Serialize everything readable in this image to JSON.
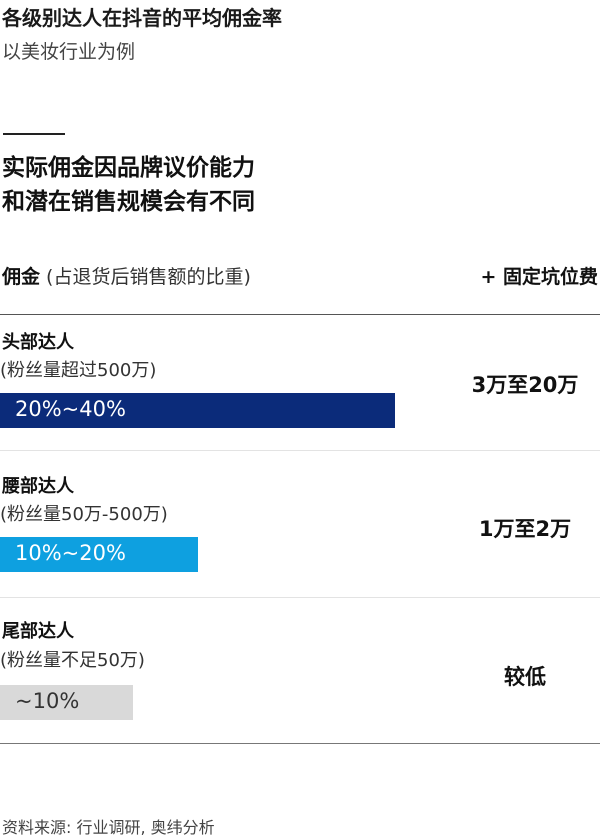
{
  "header": {
    "title": "各级别达人在抖音的平均佣金率",
    "subtitle": "以美妆行业为例",
    "headline_line1": "实际佣金因品牌议价能力",
    "headline_line2": "和潜在销售规模会有不同"
  },
  "columns": {
    "left_bold": "佣金",
    "left_rest": " (占退货后销售额的比重)",
    "right": "+ 固定坑位费"
  },
  "tiers": [
    {
      "label": "头部达人",
      "sub": "(粉丝量超过500万)",
      "commission": "20%~40%",
      "fee": "3万至20万"
    },
    {
      "label": "腰部达人",
      "sub": "(粉丝量50万-500万)",
      "commission": "10%~20%",
      "fee": "1万至2万"
    },
    {
      "label": "尾部达人",
      "sub": "(粉丝量不足50万)",
      "commission": "~10%",
      "fee": "较低"
    }
  ],
  "source": "资料来源: 行业调研, 奥纬分析",
  "chart_data": {
    "type": "bar",
    "orientation": "horizontal",
    "categories": [
      "头部达人",
      "腰部达人",
      "尾部达人"
    ],
    "ranges_percent": [
      [
        20,
        40
      ],
      [
        10,
        20
      ],
      [
        null,
        10
      ]
    ],
    "data_labels": [
      "20%~40%",
      "10%~20%",
      "~10%"
    ],
    "colors": [
      "#0b2b7a",
      "#0ea0e0",
      "#d9d9d9"
    ],
    "label_colors": [
      "#ffffff",
      "#ffffff",
      "#333333"
    ],
    "grid": false,
    "legend": "none"
  }
}
